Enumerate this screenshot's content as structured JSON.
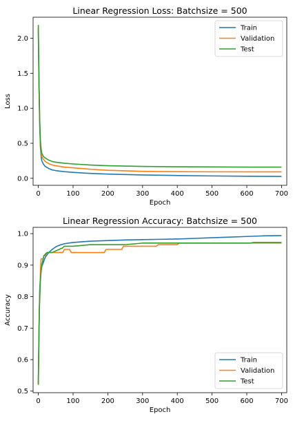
{
  "chart_data": [
    {
      "type": "line",
      "title": "Linear Regression Loss: Batchsize = 500",
      "xlabel": "Epoch",
      "ylabel": "Loss",
      "xlim": [
        -15,
        715
      ],
      "ylim": [
        -0.1,
        2.3
      ],
      "xticks": [
        0,
        100,
        200,
        300,
        400,
        500,
        600,
        700
      ],
      "yticks": [
        0.0,
        0.5,
        1.0,
        1.5,
        2.0
      ],
      "xtick_labels": [
        "0",
        "100",
        "200",
        "300",
        "400",
        "500",
        "600",
        "700"
      ],
      "ytick_labels": [
        "0.0",
        "0.5",
        "1.0",
        "1.5",
        "2.0"
      ],
      "legend_position": "top-right",
      "grid": false,
      "series": [
        {
          "name": "Train",
          "color": "#1f77b4",
          "x": [
            0,
            2,
            4,
            6,
            8,
            10,
            15,
            20,
            30,
            40,
            50,
            75,
            100,
            150,
            200,
            300,
            400,
            500,
            600,
            700
          ],
          "y": [
            2.12,
            1.3,
            0.75,
            0.45,
            0.32,
            0.25,
            0.2,
            0.17,
            0.14,
            0.12,
            0.11,
            0.095,
            0.085,
            0.07,
            0.06,
            0.048,
            0.04,
            0.034,
            0.03,
            0.027
          ]
        },
        {
          "name": "Validation",
          "color": "#ff7f0e",
          "x": [
            0,
            2,
            4,
            6,
            8,
            10,
            15,
            20,
            30,
            40,
            50,
            75,
            100,
            150,
            200,
            300,
            400,
            500,
            600,
            700
          ],
          "y": [
            2.15,
            1.35,
            0.8,
            0.5,
            0.37,
            0.31,
            0.27,
            0.24,
            0.21,
            0.19,
            0.18,
            0.16,
            0.15,
            0.13,
            0.115,
            0.1,
            0.095,
            0.093,
            0.092,
            0.092
          ]
        },
        {
          "name": "Test",
          "color": "#2ca02c",
          "x": [
            0,
            2,
            4,
            6,
            8,
            10,
            15,
            20,
            30,
            40,
            50,
            75,
            100,
            150,
            200,
            300,
            400,
            500,
            600,
            700
          ],
          "y": [
            2.19,
            1.4,
            0.85,
            0.55,
            0.42,
            0.36,
            0.31,
            0.29,
            0.26,
            0.24,
            0.23,
            0.215,
            0.205,
            0.19,
            0.18,
            0.17,
            0.165,
            0.162,
            0.16,
            0.16
          ]
        }
      ]
    },
    {
      "type": "line",
      "title": "Linear Regression Accuracy: Batchsize = 500",
      "xlabel": "Epoch",
      "ylabel": "Accuracy",
      "xlim": [
        -15,
        715
      ],
      "ylim": [
        0.495,
        1.02
      ],
      "xticks": [
        0,
        100,
        200,
        300,
        400,
        500,
        600,
        700
      ],
      "yticks": [
        0.5,
        0.6,
        0.7,
        0.8,
        0.9,
        1.0
      ],
      "xtick_labels": [
        "0",
        "100",
        "200",
        "300",
        "400",
        "500",
        "600",
        "700"
      ],
      "ytick_labels": [
        "0.5",
        "0.6",
        "0.7",
        "0.8",
        "0.9",
        "1.0"
      ],
      "legend_position": "lower-right",
      "grid": false,
      "series": [
        {
          "name": "Train",
          "color": "#1f77b4",
          "x": [
            0,
            2,
            4,
            6,
            8,
            10,
            15,
            20,
            30,
            40,
            50,
            60,
            75,
            100,
            150,
            200,
            250,
            300,
            350,
            400,
            450,
            500,
            550,
            600,
            650,
            700
          ],
          "y": [
            0.525,
            0.7,
            0.82,
            0.86,
            0.88,
            0.895,
            0.91,
            0.925,
            0.94,
            0.95,
            0.958,
            0.963,
            0.968,
            0.972,
            0.976,
            0.978,
            0.98,
            0.981,
            0.982,
            0.983,
            0.985,
            0.987,
            0.989,
            0.991,
            0.993,
            0.994
          ]
        },
        {
          "name": "Validation",
          "color": "#ff7f0e",
          "x": [
            0,
            3,
            6,
            8,
            10,
            14,
            16,
            20,
            25,
            30,
            40,
            50,
            60,
            70,
            75,
            80,
            90,
            95,
            100,
            150,
            190,
            195,
            240,
            245,
            300,
            340,
            345,
            400,
            405,
            500,
            550,
            560,
            600,
            605,
            700
          ],
          "y": [
            0.52,
            0.76,
            0.88,
            0.92,
            0.92,
            0.92,
            0.93,
            0.93,
            0.94,
            0.94,
            0.94,
            0.94,
            0.94,
            0.94,
            0.95,
            0.95,
            0.95,
            0.94,
            0.94,
            0.94,
            0.94,
            0.95,
            0.95,
            0.96,
            0.96,
            0.96,
            0.965,
            0.965,
            0.97,
            0.97,
            0.97,
            0.97,
            0.97,
            0.97,
            0.97
          ]
        },
        {
          "name": "Test",
          "color": "#2ca02c",
          "x": [
            0,
            3,
            6,
            8,
            10,
            14,
            16,
            20,
            25,
            30,
            40,
            50,
            60,
            70,
            75,
            100,
            150,
            200,
            250,
            300,
            400,
            500,
            600,
            610,
            620,
            630,
            700
          ],
          "y": [
            0.52,
            0.76,
            0.85,
            0.88,
            0.9,
            0.92,
            0.93,
            0.935,
            0.94,
            0.94,
            0.94,
            0.945,
            0.95,
            0.955,
            0.96,
            0.96,
            0.965,
            0.965,
            0.965,
            0.97,
            0.97,
            0.97,
            0.97,
            0.97,
            0.972,
            0.972,
            0.972
          ]
        }
      ]
    }
  ]
}
